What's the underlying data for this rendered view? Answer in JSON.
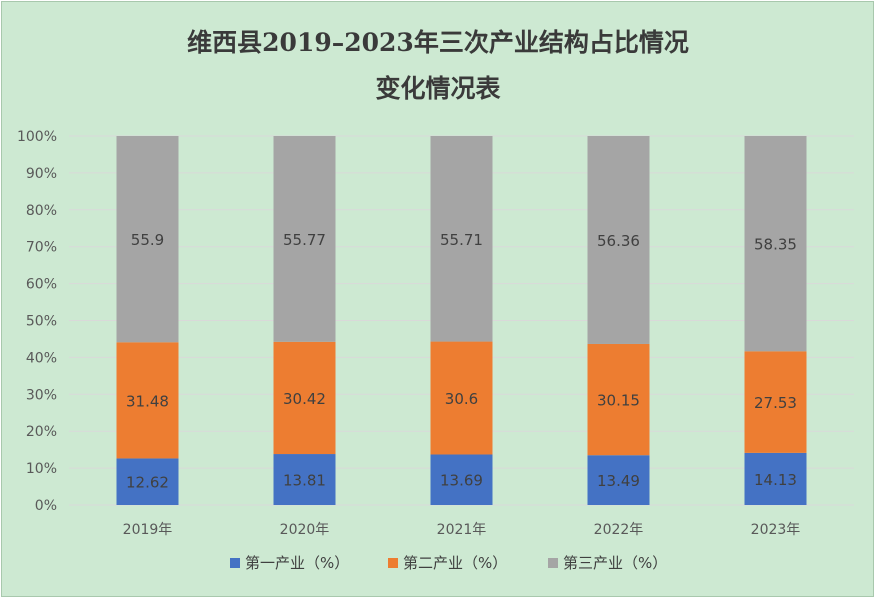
{
  "chart_data": {
    "type": "bar",
    "stacked": true,
    "percent_stacked": true,
    "title": [
      "维西县2019–2023年三次产业结构占比情况",
      "变化情况表"
    ],
    "categories": [
      "2019年",
      "2020年",
      "2021年",
      "2022年",
      "2023年"
    ],
    "series": [
      {
        "name": "第一产业（%）",
        "color": "#4472c4",
        "values": [
          12.62,
          13.81,
          13.69,
          13.49,
          14.13
        ]
      },
      {
        "name": "第二产业（%）",
        "color": "#ed7d31",
        "values": [
          31.48,
          30.42,
          30.6,
          30.15,
          27.53
        ]
      },
      {
        "name": "第三产业（%）",
        "color": "#a5a5a5",
        "values": [
          55.9,
          55.77,
          55.71,
          56.36,
          58.35
        ]
      }
    ],
    "y_ticks": [
      "0%",
      "10%",
      "20%",
      "30%",
      "40%",
      "50%",
      "60%",
      "70%",
      "80%",
      "90%",
      "100%"
    ],
    "ylim": [
      0,
      100
    ],
    "grid": true,
    "legend_position": "bottom",
    "background_color": "#cde9d2",
    "gridline_color": "#d9d9d9"
  }
}
